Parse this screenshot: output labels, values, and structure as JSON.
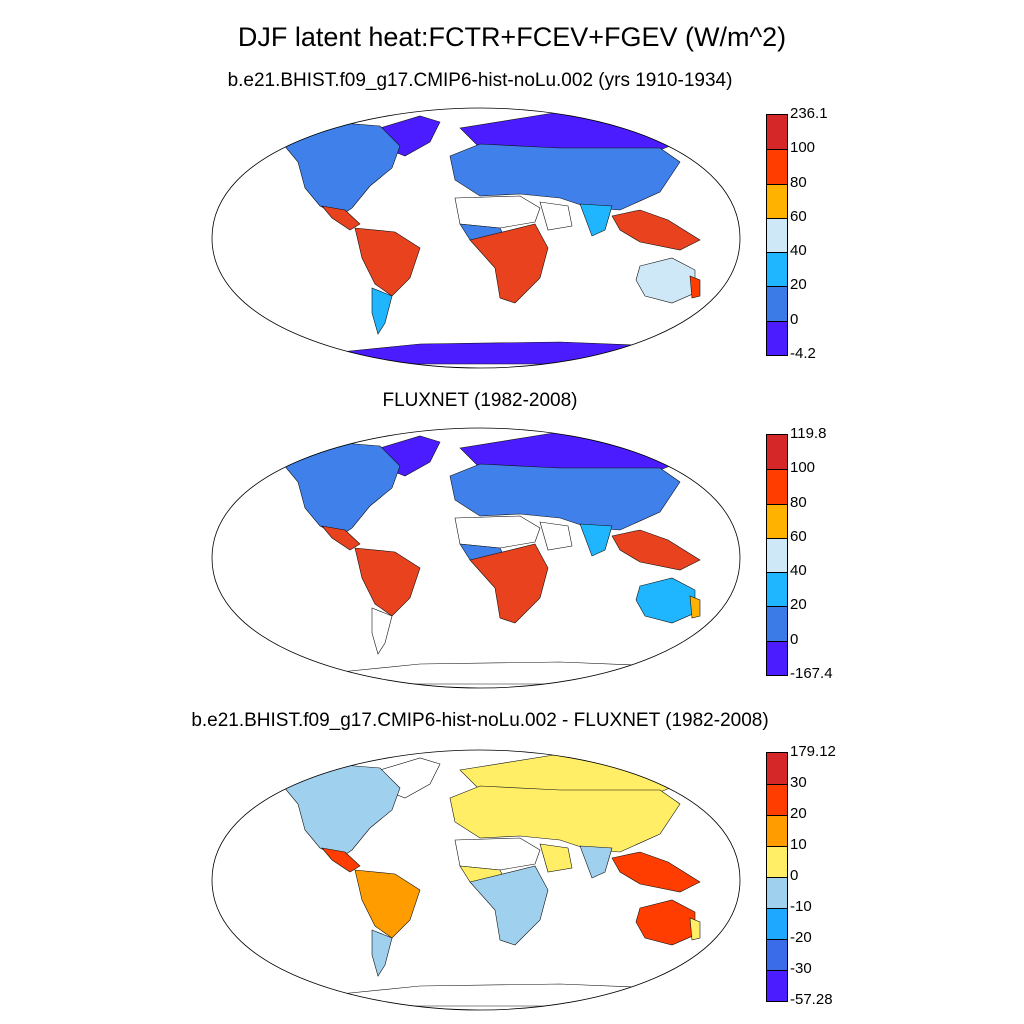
{
  "title": "DJF latent heat:FCTR+FCEV+FGEV (W/m^2)",
  "panels": [
    {
      "subtitle": "b.e21.BHIST.f09_g17.CMIP6-hist-noLu.002 (yrs 1910-1934)",
      "colorbar": {
        "labels": [
          "236.1",
          "100",
          "80",
          "60",
          "40",
          "20",
          "0",
          "-4.2"
        ],
        "colors": [
          "#d62728",
          "#ff3d00",
          "#ffb300",
          "#cfe8f7",
          "#1fb6ff",
          "#3a7be8",
          "#4a1cff"
        ]
      },
      "regions": {
        "north_america": "#3f80ea",
        "greenland": "#4a1cff",
        "central_america": "#e8421e",
        "south_america": "#e8421e",
        "patagonia": "#1fb6ff",
        "europe_asia": "#3f80ea",
        "siberia": "#4a1cff",
        "sahara": "#ffffff",
        "west_africa": "#3f80ea",
        "central_africa": "#e8421e",
        "arabia": "#ffffff",
        "india": "#1fb6ff",
        "se_asia": "#e8421e",
        "australia": "#cfe8f7",
        "australia_coast": "#ff3d00",
        "antarctica": "#4a1cff"
      }
    },
    {
      "subtitle": "FLUXNET (1982-2008)",
      "colorbar": {
        "labels": [
          "119.8",
          "100",
          "80",
          "60",
          "40",
          "20",
          "0",
          "-167.4"
        ],
        "colors": [
          "#d62728",
          "#ff3d00",
          "#ffb300",
          "#cfe8f7",
          "#1fb6ff",
          "#3a7be8",
          "#4a1cff"
        ]
      },
      "regions": {
        "north_america": "#3f80ea",
        "greenland": "#4a1cff",
        "central_america": "#e8421e",
        "south_america": "#e8421e",
        "patagonia": "#ffffff",
        "europe_asia": "#3f80ea",
        "siberia": "#4a1cff",
        "sahara": "#ffffff",
        "west_africa": "#3f80ea",
        "central_africa": "#e8421e",
        "arabia": "#ffffff",
        "india": "#1fb6ff",
        "se_asia": "#e8421e",
        "australia": "#1fb6ff",
        "australia_coast": "#ffb300",
        "antarctica": "#ffffff"
      }
    },
    {
      "subtitle": "b.e21.BHIST.f09_g17.CMIP6-hist-noLu.002 - FLUXNET (1982-2008)",
      "colorbar": {
        "labels": [
          "179.12",
          "30",
          "20",
          "10",
          "0",
          "-10",
          "-20",
          "-30",
          "-57.28"
        ],
        "colors": [
          "#d62728",
          "#ff3d00",
          "#ff9d00",
          "#ffee66",
          "#9fd0ee",
          "#1fa8ff",
          "#3a6be8",
          "#4a1cff"
        ]
      },
      "regions": {
        "north_america": "#9fd0ee",
        "greenland": "#ffffff",
        "central_america": "#ff3d00",
        "south_america": "#ff9d00",
        "patagonia": "#9fd0ee",
        "europe_asia": "#ffee66",
        "siberia": "#ffee66",
        "sahara": "#ffffff",
        "west_africa": "#ffee66",
        "central_africa": "#9fd0ee",
        "arabia": "#ffee66",
        "india": "#9fd0ee",
        "se_asia": "#ff3d00",
        "australia": "#ff3d00",
        "australia_coast": "#ffee66",
        "antarctica": "#ffffff"
      }
    }
  ]
}
